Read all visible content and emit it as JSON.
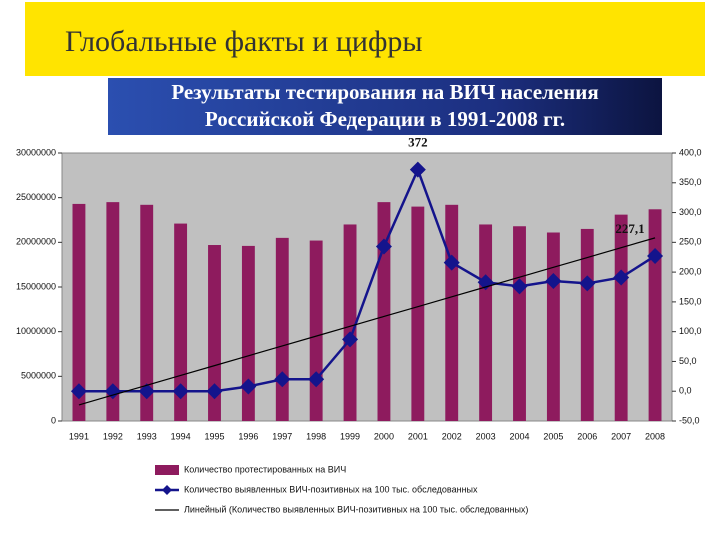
{
  "chart_data": {
    "type": "bar",
    "title": "Глобальные факты и цифры",
    "subtitle": [
      "Результаты тестирования на ВИЧ населения",
      "Российской Федерации в 1991-2008 гг."
    ],
    "categories": [
      "1991",
      "1992",
      "1993",
      "1994",
      "1995",
      "1996",
      "1997",
      "1998",
      "1999",
      "2000",
      "2001",
      "2002",
      "2003",
      "2004",
      "2005",
      "2006",
      "2007",
      "2008"
    ],
    "series": [
      {
        "name": "Количество протестированных на ВИЧ",
        "type": "bar",
        "color": "#8e1b5e",
        "values": [
          24300000,
          24500000,
          24200000,
          22100000,
          19700000,
          19600000,
          20500000,
          20200000,
          22000000,
          24500000,
          24000000,
          24200000,
          22000000,
          21800000,
          21100000,
          21500000,
          23100000,
          23700000
        ]
      },
      {
        "name": "Количество выявленных ВИЧ-позитивных на 100 тыс. обследованных",
        "type": "line",
        "axis": "y2",
        "color": "#14148c",
        "values": [
          0,
          0,
          0,
          0,
          0,
          8,
          20,
          20,
          87,
          243,
          372,
          216,
          183,
          176,
          185,
          181,
          191,
          227.1
        ],
        "value_labels": [
          null,
          null,
          null,
          null,
          null,
          null,
          null,
          null,
          null,
          null,
          "372",
          null,
          null,
          null,
          null,
          null,
          null,
          "227,1"
        ]
      },
      {
        "name": "Линейный (Количество выявленных ВИЧ-позитивных на 100 тыс. обследованных)",
        "type": "trend",
        "axis": "y2",
        "color": "#000000",
        "values": [
          -23,
          -6.5,
          10,
          26.5,
          43,
          59.5,
          76,
          92.5,
          109,
          125.5,
          142,
          158.5,
          175,
          191.5,
          208,
          224.5,
          241,
          257.5
        ]
      }
    ],
    "ylim": [
      0,
      30000000
    ],
    "yticks": [
      0,
      5000000,
      10000000,
      15000000,
      20000000,
      25000000,
      30000000
    ],
    "y2lim": [
      -50,
      400
    ],
    "y2ticks": [
      {
        "value": -50,
        "label": "-50,0"
      },
      {
        "value": 0,
        "label": "0,0"
      },
      {
        "value": 50,
        "label": "50,0"
      },
      {
        "value": 100,
        "label": "100,0"
      },
      {
        "value": 150,
        "label": "150,0"
      },
      {
        "value": 200,
        "label": "200,0"
      },
      {
        "value": 250,
        "label": "250,0"
      },
      {
        "value": 300,
        "label": "300,0"
      },
      {
        "value": 350,
        "label": "350,0"
      },
      {
        "value": 400,
        "label": "400,0"
      }
    ],
    "legend": "bottom"
  }
}
